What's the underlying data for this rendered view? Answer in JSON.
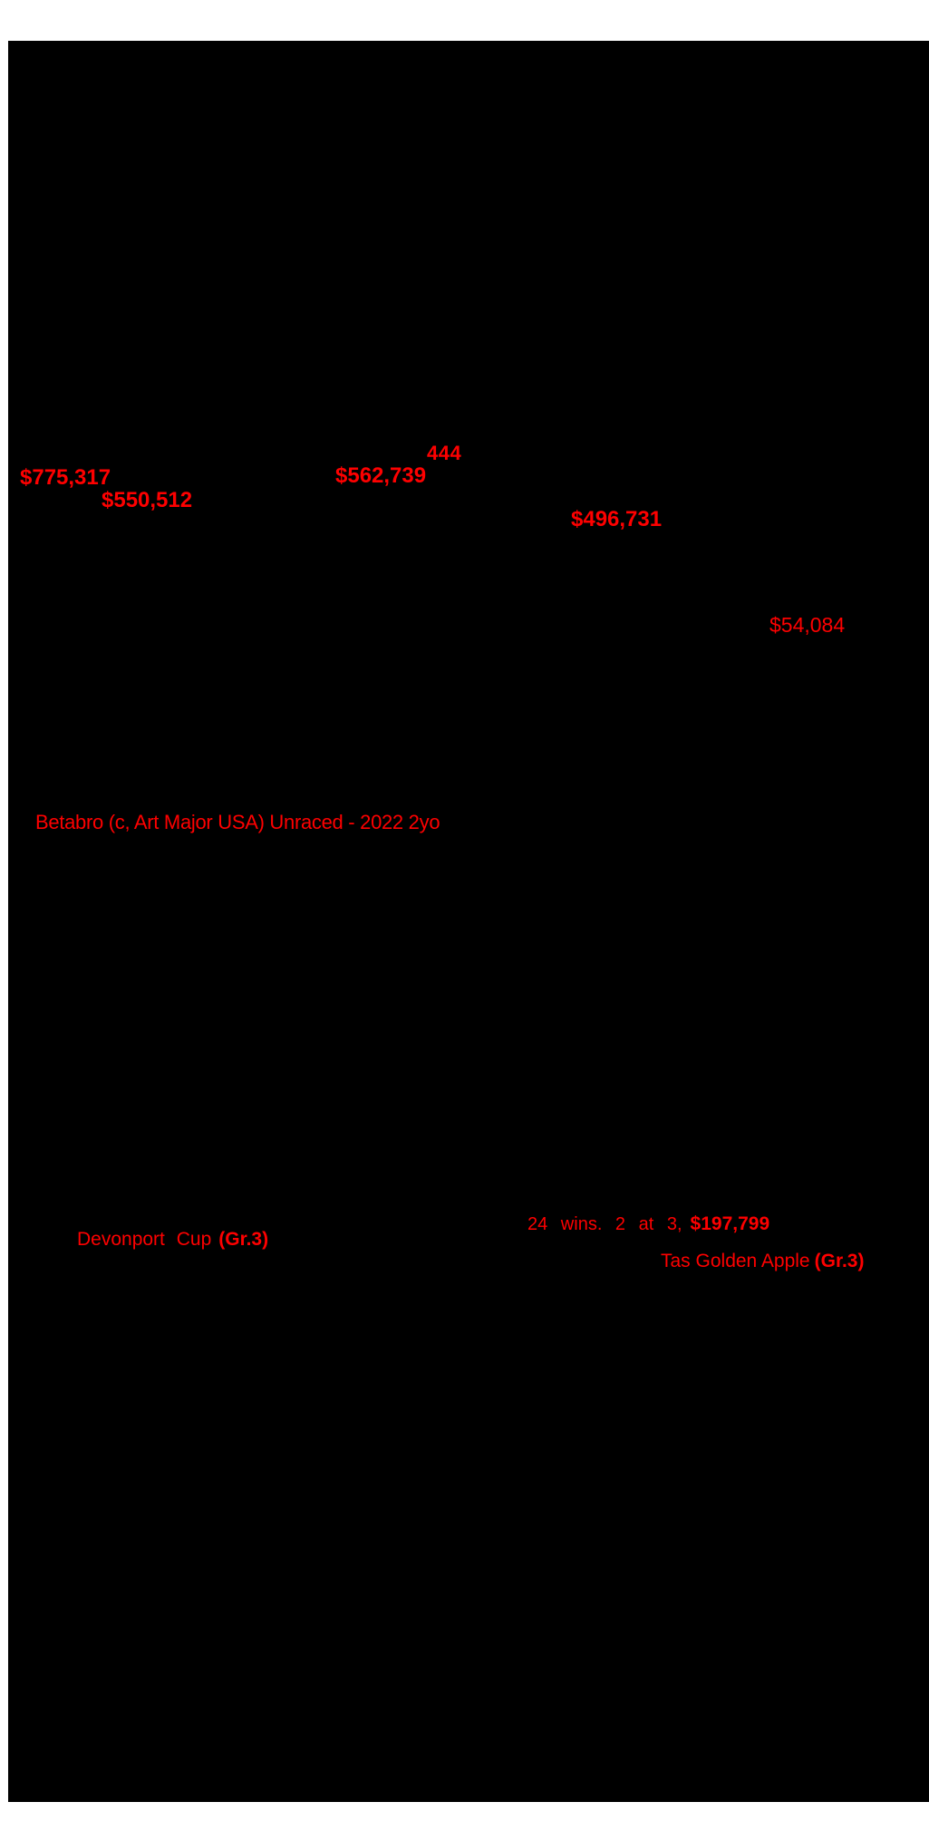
{
  "colors": {
    "highlight_red": "#fe0000",
    "scan_background": "#000000",
    "page_margin": "#ffffff"
  },
  "scan": {
    "lot_number": "444",
    "earnings_annotations": [
      "$775,317",
      "$562,739",
      "$550,512",
      "$496,731",
      "$54,084"
    ],
    "progeny_note": "Betabro (c, Art Major USA) Unraced - 2022 2yo",
    "race_record": {
      "summary": "24 wins. 2 at 3,",
      "earnings": "$197,799"
    },
    "stakes_races": [
      {
        "race": "Devonport Cup",
        "grade": "(Gr.3)"
      },
      {
        "race": "Tas Golden Apple",
        "grade": "(Gr.3)"
      }
    ]
  }
}
